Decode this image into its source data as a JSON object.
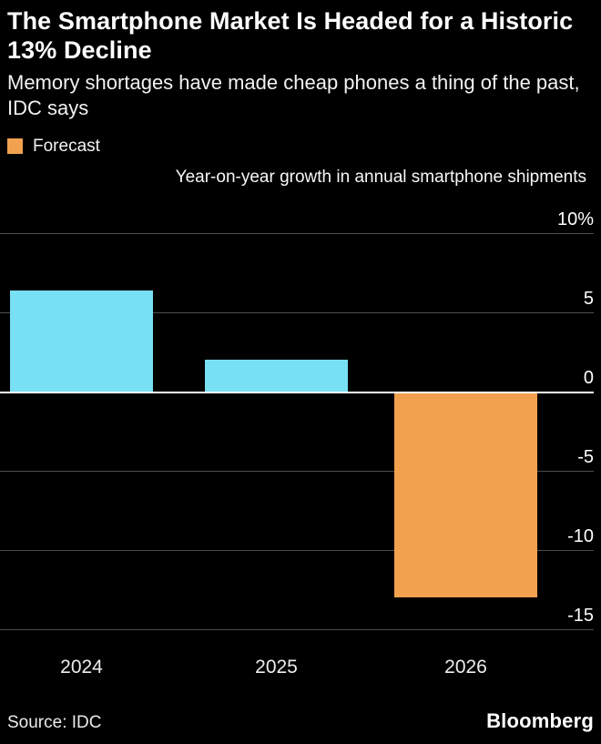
{
  "header": {
    "title": "The Smartphone Market Is Headed for a Historic 13% Decline",
    "subtitle": "Memory shortages have made cheap phones a thing of the past, IDC says"
  },
  "legend": {
    "items": [
      {
        "label": "Forecast",
        "color": "#f2a14e"
      }
    ]
  },
  "chart_data": {
    "type": "bar",
    "title": "Year-on-year growth in annual smartphone shipments",
    "categories": [
      "2024",
      "2025",
      "2026"
    ],
    "values": [
      6.4,
      2,
      -13
    ],
    "series_colors": [
      "#79dff2",
      "#79dff2",
      "#f2a14e"
    ],
    "forecast_index": 2,
    "ylim": [
      -15,
      10
    ],
    "yticks": [
      10,
      5,
      0,
      -5,
      -10,
      -15
    ],
    "ytick_labels": [
      "10%",
      "5",
      "0",
      "-5",
      "-10",
      "-15"
    ],
    "grid": true,
    "legend_position": "top-left",
    "colors": {
      "background": "#000000",
      "bar_actual": "#79dff2",
      "bar_forecast": "#f2a14e",
      "gridline": "#4d4d4d",
      "zero_line": "#ffffff"
    }
  },
  "footer": {
    "source": "Source: IDC",
    "brand": "Bloomberg"
  }
}
